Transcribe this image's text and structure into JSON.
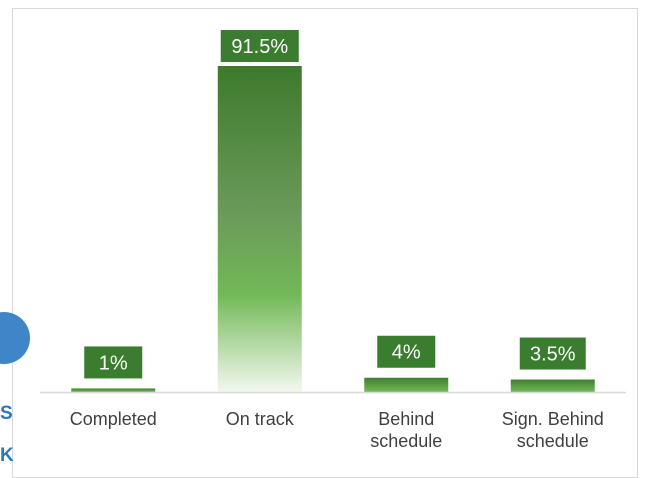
{
  "side_text": {
    "letter_1": "S",
    "letter_2": "K"
  },
  "colors": {
    "bar_top": "#3d7a2c",
    "bar_mid": "#72b857",
    "bar_bottom": "#f2f8ee",
    "label_bg": "#3a7d2e",
    "axis": "#d9d9d9",
    "text": "#404040",
    "side_accent": "#3f86c8"
  },
  "chart_data": {
    "type": "bar",
    "title": "",
    "xlabel": "",
    "ylabel": "",
    "categories": [
      [
        "Completed"
      ],
      [
        "On track"
      ],
      [
        "Behind",
        "schedule"
      ],
      [
        "Sign. Behind",
        "schedule"
      ]
    ],
    "values": [
      1,
      91.5,
      4,
      3.5
    ],
    "data_labels": [
      "1%",
      "91.5%",
      "4%",
      "3.5%"
    ],
    "ylim": [
      0,
      100
    ],
    "grid": false,
    "legend": "none"
  }
}
